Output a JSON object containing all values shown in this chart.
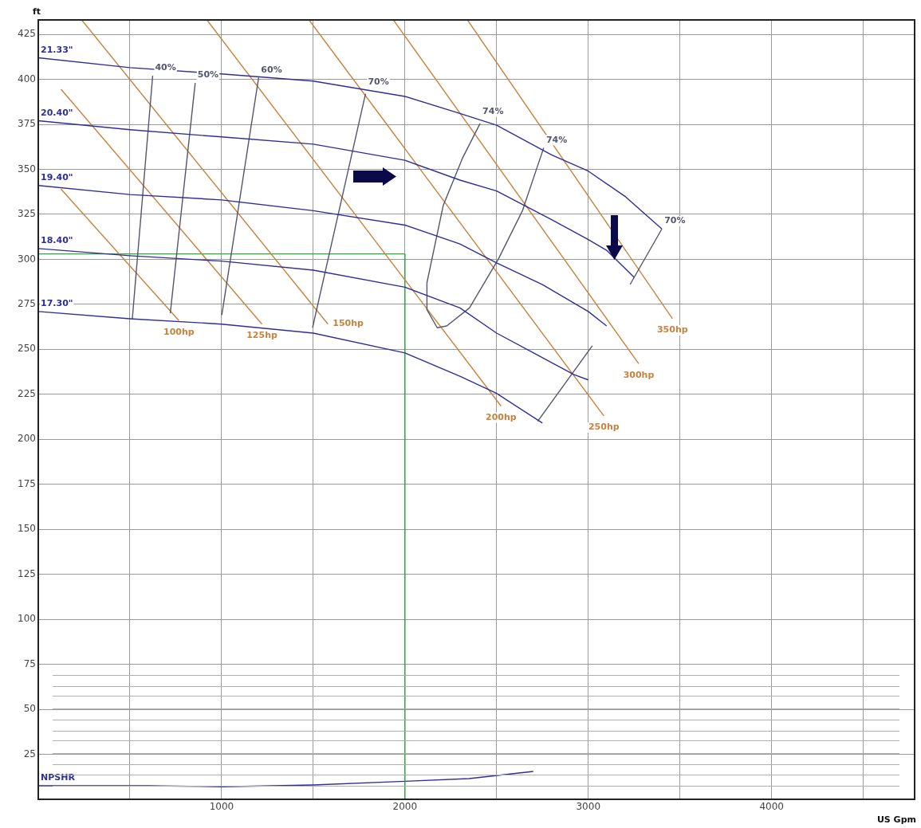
{
  "chart_data": {
    "type": "line",
    "xlabel": "US Gpm",
    "ylabel": "ft",
    "xlim": [
      0,
      4780
    ],
    "ylim": [
      0,
      433
    ],
    "xticks": [
      {
        "value": 500,
        "label": null
      },
      1000,
      {
        "value": 1500,
        "label": null
      },
      2000,
      {
        "value": 2500,
        "label": null
      },
      3000,
      {
        "value": 3500,
        "label": null
      },
      4000,
      {
        "value": 4500,
        "label": null
      }
    ],
    "yticks": [
      25,
      50,
      75,
      100,
      125,
      150,
      175,
      200,
      225,
      250,
      275,
      300,
      325,
      350,
      375,
      400,
      425
    ],
    "grid": true,
    "marker": "none",
    "line_style": "solid",
    "series": [
      {
        "name": "21.33\"",
        "color": "#2e2e9a",
        "x": [
          0,
          500,
          1000,
          1500,
          2000,
          2300,
          2500,
          2800,
          3000,
          3200,
          3400
        ],
        "values": [
          412,
          406.5,
          403,
          399,
          390.5,
          381,
          374.5,
          358,
          349,
          335,
          317
        ]
      },
      {
        "name": "20.40\"",
        "color": "#2e2e9a",
        "x": [
          0,
          500,
          1000,
          1500,
          2000,
          2300,
          2500,
          2800,
          3000,
          3100,
          3250
        ],
        "values": [
          377,
          372,
          368,
          364,
          355,
          344,
          338,
          322,
          311,
          305,
          290
        ]
      },
      {
        "name": "19.40\"",
        "color": "#2e2e9a",
        "x": [
          0,
          500,
          1000,
          1500,
          2000,
          2300,
          2500,
          2750,
          3000,
          3100
        ],
        "values": [
          341,
          336,
          333,
          327,
          319,
          308.5,
          298,
          286,
          271,
          263
        ]
      },
      {
        "name": "18.40\"",
        "color": "#2e2e9a",
        "x": [
          0,
          500,
          1000,
          1500,
          2000,
          2300,
          2500,
          2720,
          2920,
          3000
        ],
        "values": [
          306,
          302,
          299,
          294,
          284.5,
          273,
          259,
          247,
          236,
          233
        ]
      },
      {
        "name": "17.30\"",
        "color": "#2e2e9a",
        "x": [
          0,
          500,
          1000,
          1500,
          2000,
          2300,
          2500,
          2750
        ],
        "values": [
          271,
          267,
          264,
          259,
          248,
          235,
          225.5,
          209
        ]
      },
      {
        "name": "40%",
        "color": "#55556e",
        "x": [
          624,
          513
        ],
        "values": [
          402,
          267
        ]
      },
      {
        "name": "50%",
        "color": "#55556e",
        "x": [
          856,
          720
        ],
        "values": [
          398,
          270
        ]
      },
      {
        "name": "60%",
        "color": "#55556e",
        "x": [
          1202,
          1001
        ],
        "values": [
          401,
          269
        ]
      },
      {
        "name": "70%",
        "color": "#55556e",
        "x": [
          1785,
          1496
        ],
        "values": [
          392,
          262
        ]
      },
      {
        "name": "74%",
        "color": "#55556e",
        "x": [
          2410,
          2313,
          2209,
          2120,
          2120,
          2176,
          2228,
          2352,
          2509,
          2641,
          2757
        ],
        "values": [
          375.5,
          356,
          330,
          287,
          272,
          262,
          263,
          273,
          300,
          327,
          362
        ]
      },
      {
        "name": "70%",
        "color": "#55556e",
        "x": [
          3402,
          3228,
          3125,
          3022,
          2724
        ],
        "values": [
          317,
          286,
          null,
          252,
          210
        ]
      },
      {
        "name": "100hp",
        "color": "#c8823c",
        "x": [
          767,
          124
        ],
        "values": [
          266,
          339
        ]
      },
      {
        "name": "125hp",
        "color": "#c8823c",
        "x": [
          1220,
          124
        ],
        "values": [
          264,
          394.5
        ]
      },
      {
        "name": "150hp",
        "color": "#c8823c",
        "x": [
          1580,
          237
        ],
        "values": [
          264,
          433
        ]
      },
      {
        "name": "200hp",
        "color": "#c8823c",
        "x": [
          2524,
          920
        ],
        "values": [
          218.5,
          433
        ]
      },
      {
        "name": "250hp",
        "color": "#c8823c",
        "x": [
          3085,
          1477
        ],
        "values": [
          213,
          433
        ]
      },
      {
        "name": "300hp",
        "color": "#c8823c",
        "x": [
          3275,
          1937
        ],
        "values": [
          242,
          433
        ]
      },
      {
        "name": "350hp",
        "color": "#c8823c",
        "x": [
          3459,
          2341
        ],
        "values": [
          267,
          433
        ]
      },
      {
        "color": "#2ca83a",
        "x": [
          0,
          2000,
          2000
        ],
        "values": [
          303,
          303,
          0
        ]
      },
      {
        "name": "NPSHR",
        "color": "#2e2e9a",
        "x": [
          0,
          600,
          1000,
          1500,
          2000,
          2350,
          2700
        ],
        "values": [
          7.5,
          7.5,
          7,
          8,
          10,
          11.5,
          15.5
        ]
      }
    ]
  }
}
